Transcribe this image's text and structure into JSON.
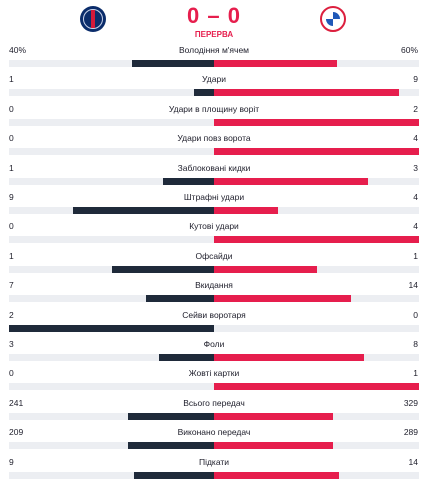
{
  "match": {
    "home_logo": "psg-crest-icon",
    "away_logo": "bayern-crest-icon",
    "score": "0 – 0",
    "status": "ПЕРЕРВА",
    "colors": {
      "home": "#1f2a3a",
      "away": "#e61e4d",
      "track": "#eceef2"
    }
  },
  "stats": [
    {
      "label": "Володіння м'ячем",
      "home": "40%",
      "away": "60%",
      "home_frac": 0.4,
      "away_frac": 0.6
    },
    {
      "label": "Удари",
      "home": "1",
      "away": "9",
      "home_frac": 0.1,
      "away_frac": 0.9
    },
    {
      "label": "Удари в площину воріт",
      "home": "0",
      "away": "2",
      "home_frac": 0.0,
      "away_frac": 1.0
    },
    {
      "label": "Удари повз ворота",
      "home": "0",
      "away": "4",
      "home_frac": 0.0,
      "away_frac": 1.0
    },
    {
      "label": "Заблоковані кидки",
      "home": "1",
      "away": "3",
      "home_frac": 0.25,
      "away_frac": 0.75
    },
    {
      "label": "Штрафні удари",
      "home": "9",
      "away": "4",
      "home_frac": 0.69,
      "away_frac": 0.31
    },
    {
      "label": "Кутові удари",
      "home": "0",
      "away": "4",
      "home_frac": 0.0,
      "away_frac": 1.0
    },
    {
      "label": "Офсайди",
      "home": "1",
      "away": "1",
      "home_frac": 0.5,
      "away_frac": 0.5
    },
    {
      "label": "Вкидання",
      "home": "7",
      "away": "14",
      "home_frac": 0.33,
      "away_frac": 0.67
    },
    {
      "label": "Сейви воротаря",
      "home": "2",
      "away": "0",
      "home_frac": 1.0,
      "away_frac": 0.0
    },
    {
      "label": "Фоли",
      "home": "3",
      "away": "8",
      "home_frac": 0.27,
      "away_frac": 0.73
    },
    {
      "label": "Жовті картки",
      "home": "0",
      "away": "1",
      "home_frac": 0.0,
      "away_frac": 1.0
    },
    {
      "label": "Всього передач",
      "home": "241",
      "away": "329",
      "home_frac": 0.42,
      "away_frac": 0.58
    },
    {
      "label": "Виконано передач",
      "home": "209",
      "away": "289",
      "home_frac": 0.42,
      "away_frac": 0.58
    },
    {
      "label": "Підкати",
      "home": "9",
      "away": "14",
      "home_frac": 0.39,
      "away_frac": 0.61
    }
  ]
}
